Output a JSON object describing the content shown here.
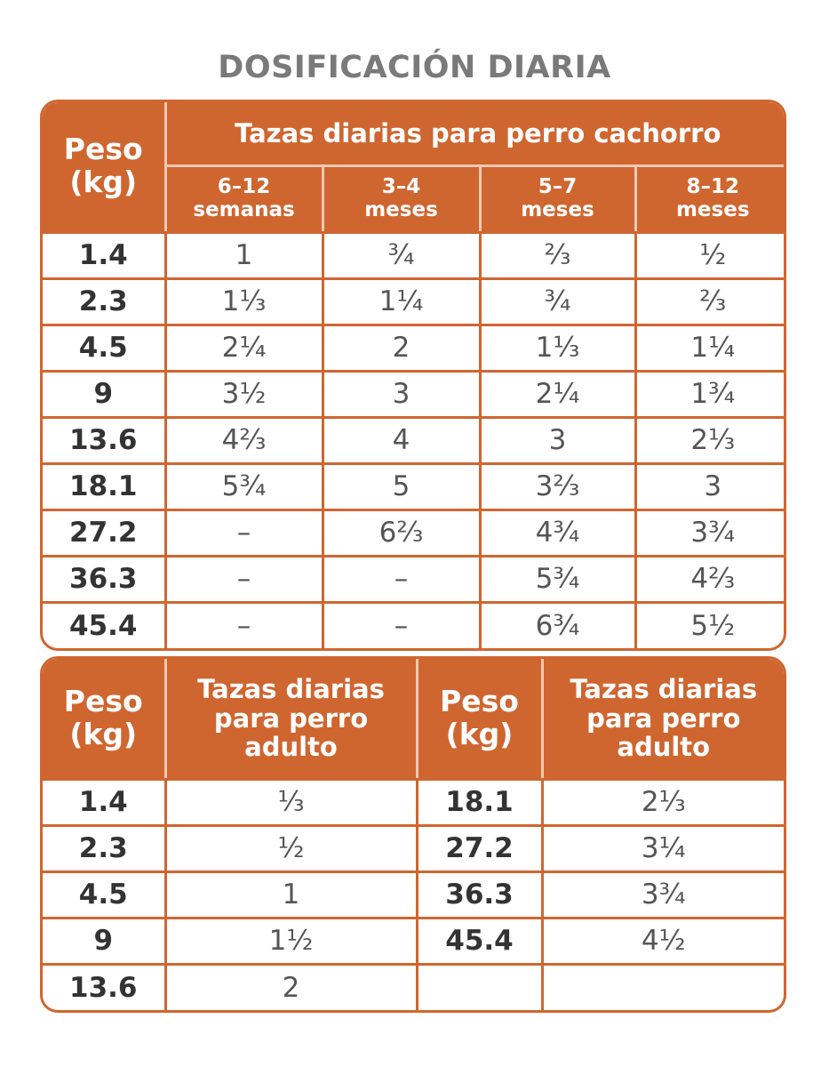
{
  "title": "DOSIFICACIÓN DIARIA",
  "puppy_table": {
    "weight_header": "Peso (kg)",
    "group_header": "Tazas diarias para perro cachorro",
    "age_headers": [
      "6–12 semanas",
      "3–4 meses",
      "5–7 meses",
      "8–12 meses"
    ],
    "rows": [
      [
        "1.4",
        "1",
        "¾",
        "⅔",
        "½"
      ],
      [
        "2.3",
        "1⅓",
        "1¼",
        "¾",
        "⅔"
      ],
      [
        "4.5",
        "2¼",
        "2",
        "1⅓",
        "1¼"
      ],
      [
        "9",
        "3½",
        "3",
        "2¼",
        "1¾"
      ],
      [
        "13.6",
        "4⅔",
        "4",
        "3",
        "2⅓"
      ],
      [
        "18.1",
        "5¾",
        "5",
        "3⅔",
        "3"
      ],
      [
        "27.2",
        "–",
        "6⅔",
        "4¾",
        "3¾"
      ],
      [
        "36.3",
        "–",
        "–",
        "5¾",
        "4⅔"
      ],
      [
        "45.4",
        "–",
        "–",
        "6¾",
        "5½"
      ]
    ]
  },
  "adult_table": {
    "left_weight_header": "Peso (kg)",
    "left_cups_header": "Tazas diarias para perro adulto",
    "right_weight_header": "Peso (kg)",
    "right_cups_header": "Tazas diarias para perro adulto",
    "left_rows": [
      [
        "1.4",
        "⅓"
      ],
      [
        "2.3",
        "½"
      ],
      [
        "4.5",
        "1"
      ],
      [
        "9",
        "1½"
      ],
      [
        "13.6",
        "2"
      ]
    ],
    "right_rows": [
      [
        "18.1",
        "2⅓"
      ],
      [
        "27.2",
        "3¼"
      ],
      [
        "36.3",
        "3¾"
      ],
      [
        "45.4",
        "4½"
      ]
    ]
  }
}
